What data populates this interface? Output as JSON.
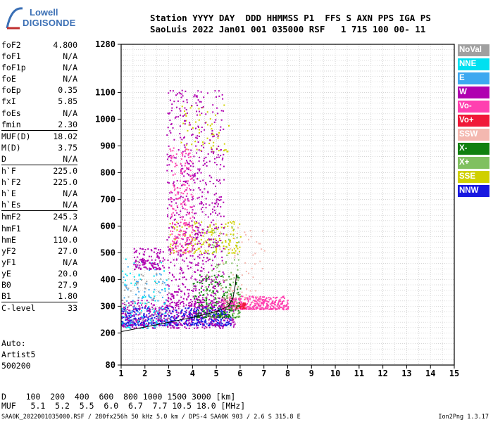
{
  "logo": {
    "line1": "Lowell",
    "line2": "DIGISONDE"
  },
  "header": {
    "line1": "Station YYYY DAY  DDD HHMMSS P1  FFS S AXN PPS IGA PS",
    "line2": "SaoLuis 2022 Jan01 001 035000 RSF   1 715 100 00- 11"
  },
  "params_groups": [
    [
      [
        "foF2",
        "4.800"
      ],
      [
        "foF1",
        "N/A"
      ],
      [
        "foF1p",
        "N/A"
      ],
      [
        "foE",
        "N/A"
      ],
      [
        "foEp",
        "0.35"
      ],
      [
        "fxI",
        "5.85"
      ],
      [
        "foEs",
        "N/A"
      ],
      [
        "fmin",
        "2.30"
      ]
    ],
    [
      [
        "MUF(D)",
        "18.02"
      ],
      [
        "M(D)",
        "3.75"
      ],
      [
        "D",
        "N/A"
      ]
    ],
    [
      [
        "h`F",
        "225.0"
      ],
      [
        "h`F2",
        "225.0"
      ],
      [
        "h`E",
        "N/A"
      ],
      [
        "h`Es",
        "N/A"
      ]
    ],
    [
      [
        "hmF2",
        "245.3"
      ],
      [
        "hmF1",
        "N/A"
      ],
      [
        "hmE",
        "110.0"
      ],
      [
        "yF2",
        "27.0"
      ],
      [
        "yF1",
        "N/A"
      ],
      [
        "yE",
        "20.0"
      ],
      [
        "B0",
        "27.9"
      ],
      [
        "B1",
        "1.80"
      ]
    ],
    [
      [
        "C-level",
        "33"
      ]
    ]
  ],
  "autoscaling": {
    "line1": "Auto:",
    "line2": "Artist5",
    "line3": "500200"
  },
  "legend": [
    {
      "label": "NoVal",
      "color": "#a0a0a0"
    },
    {
      "label": "NNE",
      "color": "#00e0f0"
    },
    {
      "label": "E",
      "color": "#3da8f0"
    },
    {
      "label": "W",
      "color": "#b000b0"
    },
    {
      "label": "Vo-",
      "color": "#ff40b0"
    },
    {
      "label": "Vo+",
      "color": "#f01838"
    },
    {
      "label": "SSW",
      "color": "#f4b8b0"
    },
    {
      "label": "X-",
      "color": "#108010"
    },
    {
      "label": "X+",
      "color": "#80c060"
    },
    {
      "label": "SSE",
      "color": "#d0d000"
    },
    {
      "label": "NNW",
      "color": "#1818e0"
    }
  ],
  "muf_table": {
    "d_row": "D    100  200  400  600  800 1000 1500 3000 [km]",
    "muf_row": "MUF   5.1  5.2  5.5  6.0  6.7  7.7 10.5 18.0 [MHz]"
  },
  "footer": {
    "left": "SAA0K_2022001035000.RSF / 280fx256h 50 kHz 5.0 km / DPS-4 SAA0K 903 / 2.6 S 315.8 E",
    "right": "Ion2Png 1.3.17"
  },
  "chart_data": {
    "type": "scatter",
    "x_ticks": [
      1,
      2,
      3,
      4,
      5,
      6,
      7,
      8,
      9,
      10,
      11,
      12,
      13,
      14,
      15
    ],
    "xlim": [
      1,
      15
    ],
    "y_ticks": [
      80,
      200,
      300,
      400,
      500,
      600,
      700,
      800,
      900,
      1000,
      1100,
      1280
    ],
    "ylim": [
      80,
      1280
    ],
    "grid": true,
    "trace": {
      "name": "h`F trace",
      "points": [
        [
          1.0,
          205
        ],
        [
          2.0,
          222
        ],
        [
          3.0,
          240
        ],
        [
          4.0,
          258
        ],
        [
          5.0,
          280
        ],
        [
          5.5,
          300
        ],
        [
          5.7,
          330
        ],
        [
          5.8,
          380
        ],
        [
          5.85,
          420
        ]
      ]
    },
    "clusters": [
      {
        "color": "#1818e0",
        "x": [
          1.0,
          5.6
        ],
        "y": [
          230,
          300
        ],
        "n": 520
      },
      {
        "color": "#b000b0",
        "x": [
          1.0,
          5.8
        ],
        "y": [
          220,
          330
        ],
        "n": 420
      },
      {
        "color": "#ff40b0",
        "x": [
          5.2,
          8.0
        ],
        "y": [
          290,
          340
        ],
        "n": 360
      },
      {
        "color": "#f01838",
        "x": [
          5.8,
          6.2
        ],
        "y": [
          295,
          315
        ],
        "n": 40
      },
      {
        "color": "#108010",
        "x": [
          4.0,
          6.0
        ],
        "y": [
          260,
          420
        ],
        "n": 200
      },
      {
        "color": "#80c060",
        "x": [
          4.5,
          6.0
        ],
        "y": [
          260,
          600
        ],
        "n": 120
      },
      {
        "color": "#d0d000",
        "x": [
          3.0,
          6.0
        ],
        "y": [
          500,
          620
        ],
        "n": 160
      },
      {
        "color": "#d0d000",
        "x": [
          3.5,
          5.5
        ],
        "y": [
          880,
          1060
        ],
        "n": 60
      },
      {
        "color": "#b000b0",
        "x": [
          2.9,
          5.3
        ],
        "y": [
          300,
          1110
        ],
        "n": 700
      },
      {
        "color": "#ff40b0",
        "x": [
          3.0,
          4.0
        ],
        "y": [
          500,
          900
        ],
        "n": 180
      },
      {
        "color": "#00e0f0",
        "x": [
          1.0,
          3.0
        ],
        "y": [
          220,
          480
        ],
        "n": 80
      },
      {
        "color": "#3da8f0",
        "x": [
          1.0,
          3.0
        ],
        "y": [
          230,
          450
        ],
        "n": 80
      },
      {
        "color": "#f4b8b0",
        "x": [
          5.0,
          7.0
        ],
        "y": [
          300,
          600
        ],
        "n": 70
      },
      {
        "color": "#a0a0a0",
        "x": [
          1.0,
          3.0
        ],
        "y": [
          250,
          480
        ],
        "n": 60
      },
      {
        "color": "#b000b0",
        "x": [
          1.5,
          2.8
        ],
        "y": [
          440,
          520
        ],
        "n": 120
      }
    ]
  }
}
